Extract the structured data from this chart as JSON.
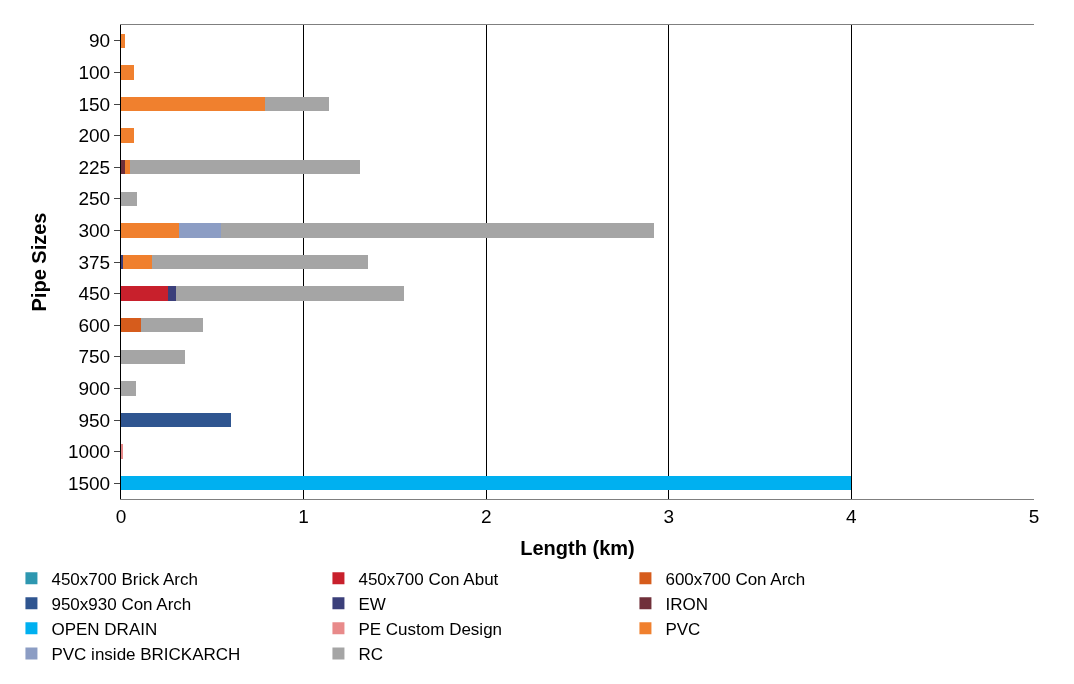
{
  "chart_data": {
    "type": "bar",
    "orientation": "horizontal",
    "stacked": true,
    "xlabel": "Length (km)",
    "ylabel": "Pipe Sizes",
    "categories": [
      "90",
      "100",
      "150",
      "200",
      "225",
      "250",
      "300",
      "375",
      "450",
      "600",
      "750",
      "900",
      "950",
      "1000",
      "1500"
    ],
    "xlim": [
      0,
      5
    ],
    "xticks": [
      0,
      1,
      2,
      3,
      4,
      5
    ],
    "grid": "x",
    "legend": "bottom",
    "series": [
      {
        "name": "450x700 Brick Arch",
        "color": "#2e97b0",
        "values": [
          null,
          null,
          null,
          null,
          null,
          null,
          null,
          null,
          null,
          null,
          null,
          null,
          null,
          null,
          null
        ]
      },
      {
        "name": "450x700 Con Abut",
        "color": "#c8202c",
        "values": [
          null,
          null,
          null,
          null,
          null,
          null,
          null,
          null,
          0.26,
          null,
          null,
          null,
          null,
          null,
          null
        ]
      },
      {
        "name": "600x700 Con Arch",
        "color": "#d65c1c",
        "values": [
          null,
          null,
          null,
          null,
          null,
          null,
          null,
          null,
          null,
          0.11,
          null,
          null,
          null,
          null,
          null
        ]
      },
      {
        "name": "950x930 Con Arch",
        "color": "#2f5590",
        "values": [
          null,
          null,
          null,
          null,
          null,
          null,
          null,
          null,
          null,
          null,
          null,
          null,
          0.6,
          null,
          null
        ]
      },
      {
        "name": "EW",
        "color": "#3b3f7a",
        "values": [
          null,
          null,
          null,
          null,
          null,
          null,
          null,
          0.01,
          0.04,
          null,
          null,
          null,
          null,
          null,
          null
        ]
      },
      {
        "name": "IRON",
        "color": "#70303a",
        "values": [
          null,
          null,
          null,
          null,
          0.02,
          null,
          null,
          null,
          null,
          null,
          null,
          null,
          null,
          null,
          null
        ]
      },
      {
        "name": "OPEN DRAIN",
        "color": "#00b0f0",
        "values": [
          null,
          null,
          null,
          null,
          null,
          null,
          null,
          null,
          null,
          null,
          null,
          null,
          null,
          null,
          4.0
        ]
      },
      {
        "name": "PE Custom Design",
        "color": "#e88a8a",
        "values": [
          null,
          null,
          null,
          null,
          null,
          null,
          null,
          null,
          null,
          null,
          null,
          null,
          null,
          0.01,
          null
        ]
      },
      {
        "name": "PVC",
        "color": "#f0802e",
        "values": [
          0.02,
          0.07,
          0.79,
          0.07,
          0.03,
          null,
          0.32,
          0.16,
          null,
          null,
          null,
          null,
          null,
          null,
          null
        ]
      },
      {
        "name": "PVC inside BRICKARCH",
        "color": "#8c9dc4",
        "values": [
          null,
          null,
          null,
          null,
          null,
          null,
          0.23,
          null,
          null,
          null,
          null,
          null,
          null,
          null,
          null
        ]
      },
      {
        "name": "RC",
        "color": "#a5a5a5",
        "values": [
          null,
          null,
          0.35,
          null,
          1.26,
          0.09,
          2.37,
          1.18,
          1.25,
          0.34,
          0.35,
          0.08,
          null,
          null,
          null
        ]
      }
    ]
  }
}
